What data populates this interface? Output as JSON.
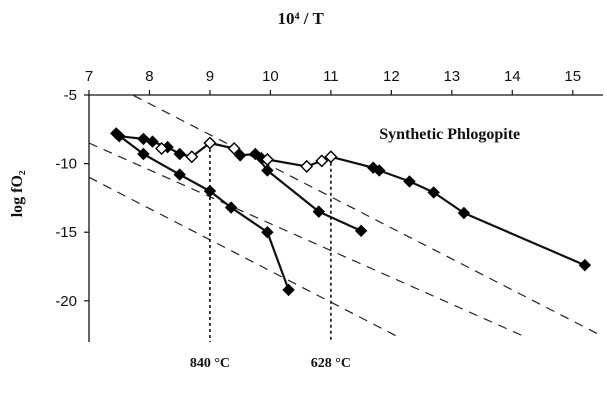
{
  "chart_data": {
    "type": "scatter",
    "title": "",
    "xlabel": "10⁴ / T",
    "ylabel": "log fO₂",
    "xlim": [
      7,
      15.5
    ],
    "ylim": [
      -23,
      -5
    ],
    "xticks": [
      7,
      8,
      9,
      10,
      11,
      12,
      13,
      14,
      15
    ],
    "yticks": [
      -5,
      -10,
      -15,
      -20
    ],
    "x_axis_position": "top",
    "grid": false,
    "legend": "none",
    "annotation": "Synthetic Phlogopite",
    "temperature_labels": [
      {
        "x": 9,
        "label": "840 °C"
      },
      {
        "x": 11,
        "label": "628 °C"
      }
    ],
    "colors": {
      "line": "#111111",
      "filled_marker": "#000000",
      "open_marker": "#ffffff"
    },
    "series": [
      {
        "marker": "filled-diamond",
        "x": [
          7.45,
          7.9,
          8.5,
          9.0,
          9.35,
          9.95,
          10.3
        ],
        "y": [
          -7.8,
          -9.3,
          -10.8,
          -12.0,
          -13.2,
          -15.0,
          -19.2
        ]
      },
      {
        "marker": "filled-diamond",
        "x": [
          9.95,
          10.8,
          11.5
        ],
        "y": [
          -10.5,
          -13.5,
          -14.9
        ]
      },
      {
        "marker": "filled-diamond",
        "x": [
          7.5,
          7.9,
          8.05,
          8.3,
          8.5,
          9.5,
          9.75,
          9.85
        ],
        "y": [
          -8.0,
          -8.2,
          -8.4,
          -8.8,
          -9.3,
          -9.4,
          -9.3,
          -9.6
        ]
      },
      {
        "marker": "open-diamond",
        "x": [
          8.2,
          8.7,
          9.0,
          9.4,
          9.95,
          10.6,
          10.85,
          11.0
        ],
        "y": [
          -8.9,
          -9.5,
          -8.5,
          -8.9,
          -9.7,
          -10.2,
          -9.8,
          -9.5
        ]
      },
      {
        "marker": "filled-diamond",
        "x": [
          11.7,
          11.8,
          12.3,
          12.7,
          13.2,
          15.2
        ],
        "y": [
          -10.3,
          -10.5,
          -11.3,
          -12.1,
          -13.6,
          -17.4
        ]
      }
    ],
    "connecting_lines": [
      {
        "x": [
          7.45,
          7.9,
          8.5,
          9.0,
          9.35,
          9.95,
          10.3
        ],
        "y": [
          -7.8,
          -9.3,
          -10.8,
          -12.0,
          -13.2,
          -15.0,
          -19.2
        ]
      },
      {
        "x": [
          7.5,
          7.9,
          8.05,
          8.3,
          8.5,
          8.7,
          9.0,
          9.4,
          9.5,
          9.75,
          9.95,
          10.8,
          11.5
        ],
        "y": [
          -8.0,
          -8.2,
          -8.4,
          -8.8,
          -9.3,
          -9.5,
          -8.5,
          -8.9,
          -9.4,
          -9.3,
          -10.5,
          -13.5,
          -14.9
        ]
      },
      {
        "x": [
          9.85,
          9.95,
          10.6,
          10.85,
          11.0,
          11.7,
          11.8,
          12.3,
          12.7,
          13.2,
          15.2
        ],
        "y": [
          -9.6,
          -9.7,
          -10.2,
          -9.8,
          -9.5,
          -10.3,
          -10.5,
          -11.3,
          -12.1,
          -13.6,
          -17.4
        ]
      }
    ],
    "reference_lines": [
      {
        "style": "dashed",
        "x": [
          7.5,
          15.5
        ],
        "y": [
          -4.5,
          -22.6
        ]
      },
      {
        "style": "dashed",
        "x": [
          7,
          14.2
        ],
        "y": [
          -8.5,
          -22.6
        ]
      },
      {
        "style": "dashed",
        "x": [
          7,
          12.1
        ],
        "y": [
          -11.0,
          -22.6
        ]
      }
    ],
    "vertical_markers": [
      {
        "style": "dotted",
        "x": 9,
        "y": [
          -8.5,
          -23
        ]
      },
      {
        "style": "dotted",
        "x": 11,
        "y": [
          -9.5,
          -23
        ]
      }
    ]
  }
}
